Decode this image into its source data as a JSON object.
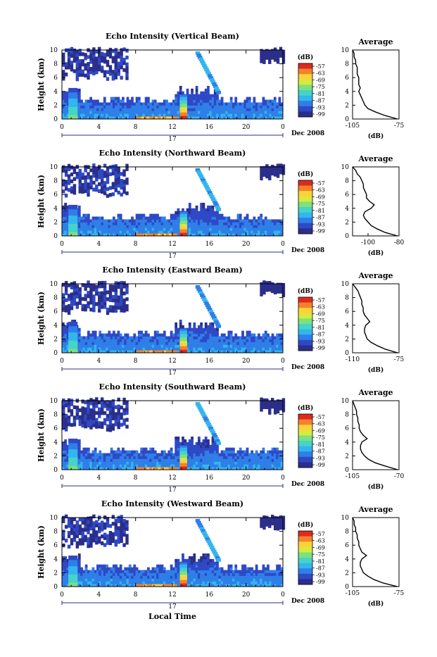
{
  "figure": {
    "x_axis_label": "Local Time",
    "colorbar_unit": "(dB)",
    "colorbar_ticks": [
      "-57",
      "-63",
      "-69",
      "-75",
      "-81",
      "-87",
      "-93",
      "-99"
    ],
    "colorbar_colors": [
      "#2b2f8a",
      "#2f49c6",
      "#2f7fe8",
      "#33b6ee",
      "#46d3c8",
      "#7ee07f",
      "#d7ea3f",
      "#fbd23a",
      "#f4822a",
      "#dc2b1e"
    ],
    "day_label": "17",
    "month_label": "Dec 2008",
    "average_title": "Average",
    "average_xlabel": "(dB)"
  },
  "chart_data": [
    {
      "type": "heatmap",
      "title": "Echo Intensity (Vertical Beam)",
      "ylabel": "Height (km)",
      "xlabel": "Local Time",
      "x_ticks": [
        "0",
        "4",
        "8",
        "12",
        "16",
        "20",
        "0"
      ],
      "y_ticks": [
        "0",
        "2",
        "4",
        "6",
        "8",
        "10"
      ],
      "xlim": [
        0,
        24
      ],
      "ylim": [
        0,
        10
      ],
      "colorbar": {
        "label": "(dB)",
        "ticks": [
          -57,
          -63,
          -69,
          -75,
          -81,
          -87,
          -93,
          -99
        ]
      },
      "average_profile": {
        "title": "Average",
        "xlabel": "(dB)",
        "x_ticks": [
          "-105",
          "-75"
        ],
        "xlim": [
          -105,
          -75
        ],
        "y_ticks": [
          "0",
          "2",
          "4",
          "6",
          "8",
          "10"
        ],
        "heights": [
          0,
          0.5,
          1,
          1.5,
          2,
          2.5,
          3,
          3.5,
          4,
          4.5,
          5,
          5.5,
          6,
          6.5,
          7,
          7.5,
          8,
          8.5,
          9,
          9.5,
          10
        ],
        "values": [
          -76,
          -84,
          -90,
          -95,
          -97,
          -98,
          -99,
          -100,
          -101,
          -100,
          -101,
          -101,
          -101,
          -102,
          -102,
          -102,
          -103,
          -103,
          -104,
          -104,
          -105
        ]
      }
    },
    {
      "type": "heatmap",
      "title": "Echo Intensity (Northward Beam)",
      "ylabel": "Height (km)",
      "xlabel": "Local Time",
      "x_ticks": [
        "0",
        "4",
        "8",
        "12",
        "16",
        "20",
        "0"
      ],
      "y_ticks": [
        "0",
        "2",
        "4",
        "6",
        "8",
        "10"
      ],
      "xlim": [
        0,
        24
      ],
      "ylim": [
        0,
        10
      ],
      "colorbar": {
        "label": "(dB)",
        "ticks": [
          -57,
          -63,
          -69,
          -75,
          -81,
          -87,
          -93,
          -99
        ]
      },
      "average_profile": {
        "title": "Average",
        "xlabel": "(dB)",
        "x_ticks": [
          "-100",
          "-80"
        ],
        "xlim": [
          -110,
          -80
        ],
        "y_ticks": [
          "0",
          "2",
          "4",
          "6",
          "8",
          "10"
        ],
        "heights": [
          0,
          0.5,
          1,
          1.5,
          2,
          2.5,
          3,
          3.5,
          4,
          4.5,
          5,
          5.5,
          6,
          6.5,
          7,
          7.5,
          8,
          8.5,
          9,
          9.5,
          10
        ],
        "values": [
          -81,
          -89,
          -94,
          -98,
          -100,
          -102,
          -103,
          -102,
          -98,
          -96,
          -99,
          -101,
          -101,
          -102,
          -103,
          -103,
          -104,
          -105,
          -107,
          -108,
          -110
        ]
      }
    },
    {
      "type": "heatmap",
      "title": "Echo Intensity (Eastward Beam)",
      "ylabel": "Height (km)",
      "xlabel": "Local Time",
      "x_ticks": [
        "0",
        "4",
        "8",
        "12",
        "16",
        "20",
        "0"
      ],
      "y_ticks": [
        "0",
        "2",
        "4",
        "6",
        "8",
        "10"
      ],
      "xlim": [
        0,
        24
      ],
      "ylim": [
        0,
        10
      ],
      "colorbar": {
        "label": "(dB)",
        "ticks": [
          -57,
          -63,
          -69,
          -75,
          -81,
          -87,
          -93,
          -99
        ]
      },
      "average_profile": {
        "title": "Average",
        "xlabel": "(dB)",
        "x_ticks": [
          "-110",
          "-75"
        ],
        "xlim": [
          -110,
          -75
        ],
        "y_ticks": [
          "0",
          "2",
          "4",
          "6",
          "8",
          "10"
        ],
        "heights": [
          0,
          0.5,
          1,
          1.5,
          2,
          2.5,
          3,
          3.5,
          4,
          4.5,
          5,
          5.5,
          6,
          6.5,
          7,
          7.5,
          8,
          8.5,
          9,
          9.5,
          10
        ],
        "values": [
          -76,
          -85,
          -91,
          -96,
          -99,
          -100,
          -101,
          -101,
          -100,
          -97,
          -99,
          -101,
          -102,
          -102,
          -103,
          -103,
          -104,
          -105,
          -106,
          -108,
          -110
        ]
      }
    },
    {
      "type": "heatmap",
      "title": "Echo Intensity (Southward Beam)",
      "ylabel": "Height (km)",
      "xlabel": "Local Time",
      "x_ticks": [
        "0",
        "4",
        "8",
        "12",
        "16",
        "20",
        "0"
      ],
      "y_ticks": [
        "0",
        "2",
        "4",
        "6",
        "8",
        "10"
      ],
      "xlim": [
        0,
        24
      ],
      "ylim": [
        0,
        10
      ],
      "colorbar": {
        "label": "(dB)",
        "ticks": [
          -57,
          -63,
          -69,
          -75,
          -81,
          -87,
          -93,
          -99
        ]
      },
      "average_profile": {
        "title": "Average",
        "xlabel": "(dB)",
        "x_ticks": [
          "-105",
          "-70"
        ],
        "xlim": [
          -105,
          -70
        ],
        "y_ticks": [
          "0",
          "2",
          "4",
          "6",
          "8",
          "10"
        ],
        "heights": [
          0,
          0.5,
          1,
          1.5,
          2,
          2.5,
          3,
          3.5,
          4,
          4.5,
          5,
          5.5,
          6,
          6.5,
          7,
          7.5,
          8,
          8.5,
          9,
          9.5,
          10
        ],
        "values": [
          -71,
          -80,
          -88,
          -93,
          -96,
          -98,
          -99,
          -99,
          -98,
          -94,
          -97,
          -99,
          -100,
          -100,
          -101,
          -101,
          -102,
          -102,
          -103,
          -104,
          -105
        ]
      }
    },
    {
      "type": "heatmap",
      "title": "Echo Intensity (Westward Beam)",
      "ylabel": "Height (km)",
      "xlabel": "Local Time",
      "x_ticks": [
        "0",
        "4",
        "8",
        "12",
        "16",
        "20",
        "0"
      ],
      "y_ticks": [
        "0",
        "2",
        "4",
        "6",
        "8",
        "10"
      ],
      "xlim": [
        0,
        24
      ],
      "ylim": [
        0,
        10
      ],
      "colorbar": {
        "label": "(dB)",
        "ticks": [
          -57,
          -63,
          -69,
          -75,
          -81,
          -87,
          -93,
          -99
        ]
      },
      "average_profile": {
        "title": "Average",
        "xlabel": "(dB)",
        "x_ticks": [
          "-105",
          "-75"
        ],
        "xlim": [
          -105,
          -75
        ],
        "y_ticks": [
          "0",
          "2",
          "4",
          "6",
          "8",
          "10"
        ],
        "heights": [
          0,
          0.5,
          1,
          1.5,
          2,
          2.5,
          3,
          3.5,
          4,
          4.5,
          5,
          5.5,
          6,
          6.5,
          7,
          7.5,
          8,
          8.5,
          9,
          9.5,
          10
        ],
        "values": [
          -76,
          -85,
          -91,
          -95,
          -98,
          -99,
          -100,
          -100,
          -99,
          -96,
          -99,
          -100,
          -101,
          -101,
          -102,
          -102,
          -103,
          -103,
          -104,
          -104,
          -105
        ]
      }
    }
  ]
}
